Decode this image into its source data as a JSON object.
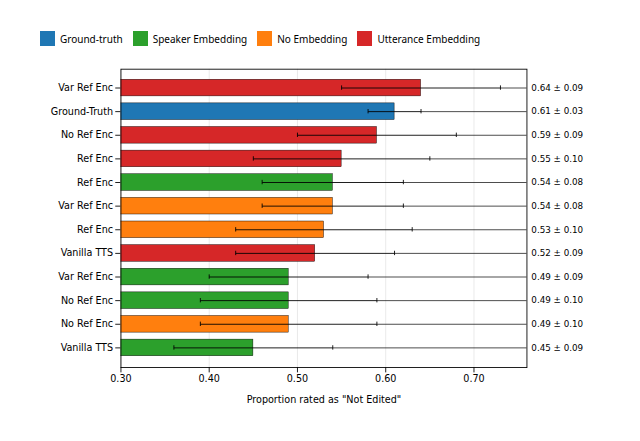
{
  "chart_data": {
    "type": "bar",
    "orientation": "horizontal",
    "xlabel": "Proportion rated as \"Not Edited\"",
    "categories": [
      "Var Ref Enc",
      "Ground-Truth",
      "No Ref Enc",
      "Ref Enc",
      "Ref Enc",
      "Var Ref Enc",
      "Ref Enc",
      "Vanilla TTS",
      "Var Ref Enc",
      "No Ref Enc",
      "No Ref Enc",
      "Vanilla TTS"
    ],
    "series": [
      {
        "name": "Ground-truth",
        "color": "#1f77b4",
        "values": [
          null,
          0.61,
          null,
          null,
          null,
          null,
          null,
          null,
          null,
          null,
          null,
          null
        ],
        "errors": [
          null,
          0.03,
          null,
          null,
          null,
          null,
          null,
          null,
          null,
          null,
          null,
          null
        ],
        "value_labels": [
          null,
          "0.61 ± 0.03",
          null,
          null,
          null,
          null,
          null,
          null,
          null,
          null,
          null,
          null
        ]
      },
      {
        "name": "Speaker Embedding",
        "color": "#2ca02c",
        "values": [
          null,
          null,
          null,
          null,
          0.54,
          null,
          null,
          null,
          0.49,
          0.49,
          null,
          0.45
        ],
        "errors": [
          null,
          null,
          null,
          null,
          0.08,
          null,
          null,
          null,
          0.09,
          0.1,
          null,
          0.09
        ],
        "value_labels": [
          null,
          null,
          null,
          null,
          "0.54 ± 0.08",
          null,
          null,
          null,
          "0.49 ± 0.09",
          "0.49 ± 0.10",
          null,
          "0.45 ± 0.09"
        ]
      },
      {
        "name": "No Embedding",
        "color": "#ff7f0e",
        "values": [
          null,
          null,
          null,
          null,
          null,
          0.54,
          0.53,
          null,
          null,
          null,
          0.49,
          null
        ],
        "errors": [
          null,
          null,
          null,
          null,
          null,
          0.08,
          0.1,
          null,
          null,
          null,
          0.1,
          null
        ],
        "value_labels": [
          null,
          null,
          null,
          null,
          null,
          "0.54 ± 0.08",
          "0.53 ± 0.10",
          null,
          null,
          null,
          "0.49 ± 0.10",
          null
        ]
      },
      {
        "name": "Utterance Embedding",
        "color": "#d62728",
        "values": [
          0.64,
          null,
          0.59,
          0.55,
          null,
          null,
          null,
          0.52,
          null,
          null,
          null,
          null
        ],
        "errors": [
          0.09,
          null,
          0.09,
          0.1,
          null,
          null,
          null,
          0.09,
          null,
          null,
          null,
          null
        ],
        "value_labels": [
          "0.64 ± 0.09",
          null,
          "0.59 ± 0.09",
          "0.55 ± 0.10",
          null,
          null,
          null,
          "0.52 ± 0.09",
          null,
          null,
          null,
          null
        ]
      }
    ],
    "xlim": [
      0.3,
      0.76
    ],
    "xticks": [
      0.3,
      0.4,
      0.5,
      0.6,
      0.7
    ],
    "grid": true,
    "legend": "top",
    "data_labels": true
  }
}
